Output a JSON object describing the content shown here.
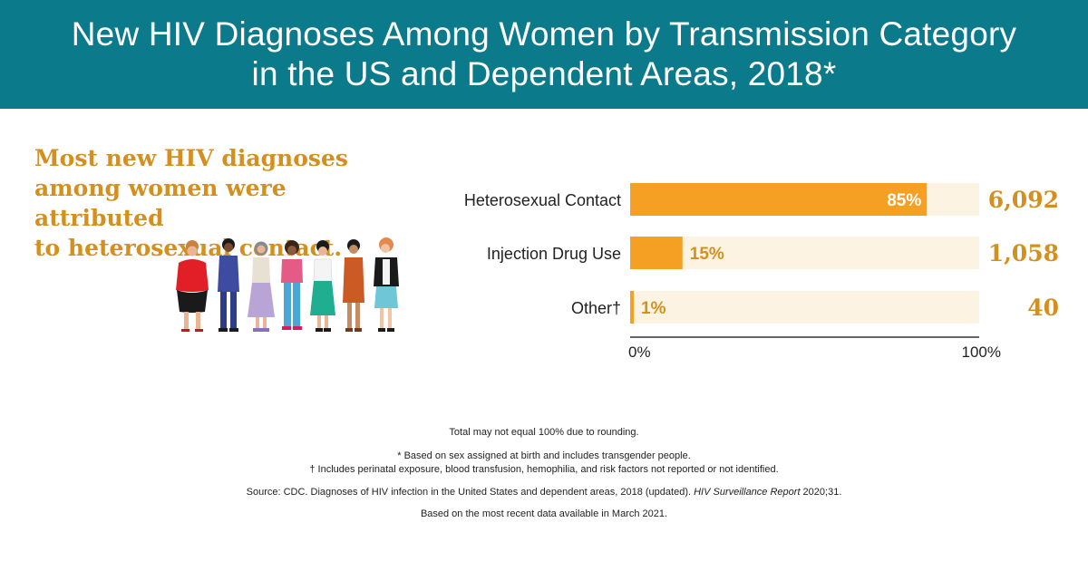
{
  "header": {
    "title_line1": "New HIV Diagnoses Among Women by Transmission Category",
    "title_line2": "in the US and Dependent Areas, 2018*"
  },
  "headline": {
    "line1": "Most new HIV diagnoses",
    "line2": "among women were attributed",
    "line3": "to heterosexual contact."
  },
  "colors": {
    "header_bg": "#0b7a8b",
    "bar_fill": "#f5a022",
    "bar_track": "#fdf3e3",
    "value_text": "#d4901e",
    "label_text": "#222222"
  },
  "chart_data": {
    "type": "bar",
    "orientation": "horizontal",
    "categories": [
      "Heterosexual Contact",
      "Injection Drug Use",
      "Other†"
    ],
    "values": [
      85,
      15,
      1
    ],
    "value_labels": [
      "85%",
      "15%",
      "1%"
    ],
    "counts": [
      "6,092",
      "1,058",
      "40"
    ],
    "xlim": [
      0,
      100
    ],
    "x_tick_labels": [
      "0%",
      "100%"
    ],
    "grid": false,
    "legend": "none"
  },
  "footnotes": {
    "rounding": "Total may not equal 100% due to rounding.",
    "star": "* Based on sex assigned at birth and includes transgender people.",
    "dagger": "† Includes perinatal exposure, blood transfusion, hemophilia, and risk factors not reported or not identified.",
    "source_main": "Source: CDC. Diagnoses of HIV infection in the United States and dependent areas, 2018 (updated). ",
    "source_italic": "HIV Surveillance Report",
    "source_tail": " 2020;31.",
    "recency": "Based on the most recent data available in March 2021."
  }
}
